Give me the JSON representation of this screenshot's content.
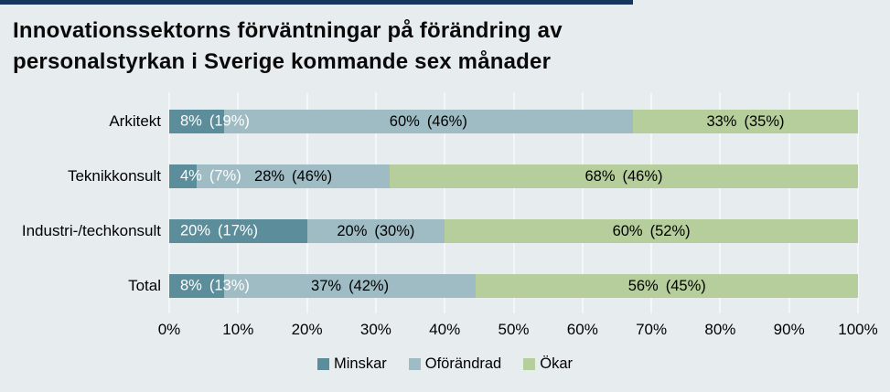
{
  "title": {
    "line1": "Innovationssektorns förväntningar på förändring av",
    "line2": "personalstyrkan i Sverige kommande sex månader"
  },
  "colors": {
    "background": "#E7EDEF",
    "top_bar": "#17365D",
    "gridline": "#F3F7F8",
    "minskar": "#5C8D9A",
    "oforandrad": "#9FBCC4",
    "okar": "#B5CE9B"
  },
  "chart_data": {
    "type": "bar",
    "orientation": "horizontal",
    "stacked": true,
    "title": "Innovationssektorns förväntningar på förändring av personalstyrkan i Sverige kommande sex månader",
    "categories": [
      "Arkitekt",
      "Teknikkonsult",
      "Industri-/techkonsult",
      "Total"
    ],
    "series": [
      {
        "name": "Minskar",
        "color": "#5C8D9A",
        "text_color": "#FFFFFF",
        "values": [
          8,
          4,
          20,
          8
        ],
        "previous_values": [
          19,
          7,
          17,
          13
        ]
      },
      {
        "name": "Oförändrad",
        "color": "#9FBCC4",
        "text_color": "#000000",
        "values": [
          60,
          28,
          20,
          37
        ],
        "previous_values": [
          46,
          46,
          30,
          42
        ]
      },
      {
        "name": "Ökar",
        "color": "#B5CE9B",
        "text_color": "#000000",
        "values": [
          33,
          68,
          60,
          56
        ],
        "previous_values": [
          35,
          46,
          52,
          45
        ]
      }
    ],
    "bar_labels": [
      [
        {
          "text": "8%",
          "prev": "(19%)"
        },
        {
          "text": "60%",
          "prev": "(46%)"
        },
        {
          "text": "33%",
          "prev": "(35%)"
        }
      ],
      [
        {
          "text": "4%",
          "prev": "(7%)"
        },
        {
          "text": "28%",
          "prev": "(46%)"
        },
        {
          "text": "68%",
          "prev": "(46%)"
        }
      ],
      [
        {
          "text": "20%",
          "prev": "(17%)"
        },
        {
          "text": "20%",
          "prev": "(30%)"
        },
        {
          "text": "60%",
          "prev": "(52%)"
        }
      ],
      [
        {
          "text": "8%",
          "prev": "(13%)"
        },
        {
          "text": "37%",
          "prev": "(42%)"
        },
        {
          "text": "56%",
          "prev": "(45%)"
        }
      ]
    ],
    "x_ticks": [
      "0%",
      "10%",
      "20%",
      "30%",
      "40%",
      "50%",
      "60%",
      "70%",
      "80%",
      "90%",
      "100%"
    ],
    "xlim": [
      0,
      100
    ],
    "grid": true,
    "legend_position": "bottom"
  },
  "legend": {
    "items": [
      {
        "label": "Minskar",
        "color": "#5C8D9A"
      },
      {
        "label": "Oförändrad",
        "color": "#9FBCC4"
      },
      {
        "label": "Ökar",
        "color": "#B5CE9B"
      }
    ]
  }
}
